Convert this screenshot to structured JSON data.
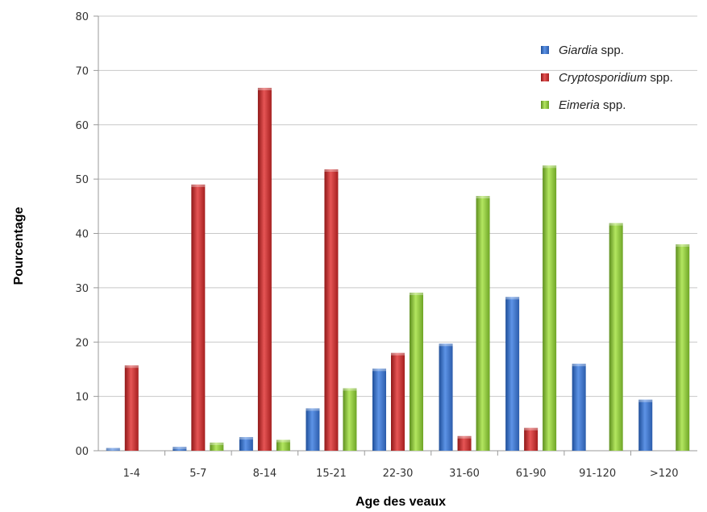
{
  "chart_data": {
    "type": "bar",
    "categories": [
      "1-4",
      "5-7",
      "8-14",
      "15-21",
      "22-30",
      "31-60",
      "61-90",
      "91-120",
      ">120"
    ],
    "series": [
      {
        "name": "Giardia",
        "name_suffix": " spp.",
        "color": "#3a6fc4",
        "values": [
          0.5,
          0.7,
          2.5,
          7.8,
          15.1,
          19.7,
          28.3,
          16.0,
          9.4
        ]
      },
      {
        "name": "Cryptosporidium",
        "name_suffix": " spp.",
        "color": "#c42b2b",
        "values": [
          15.7,
          49.0,
          66.8,
          51.8,
          18.0,
          2.7,
          4.2,
          0,
          0
        ]
      },
      {
        "name": "Eimeria",
        "name_suffix": " spp.",
        "color": "#8cc43a",
        "values": [
          0,
          1.5,
          2.0,
          11.5,
          29.1,
          46.9,
          52.5,
          41.9,
          38.0
        ]
      }
    ],
    "title": "",
    "xlabel": "Age des veaux",
    "ylabel": "Pourcentage",
    "ylim": [
      0,
      80
    ],
    "yticks": [
      "00",
      "10",
      "20",
      "30",
      "40",
      "50",
      "60",
      "70",
      "80"
    ],
    "grid": true,
    "legend_position": "top-right"
  }
}
